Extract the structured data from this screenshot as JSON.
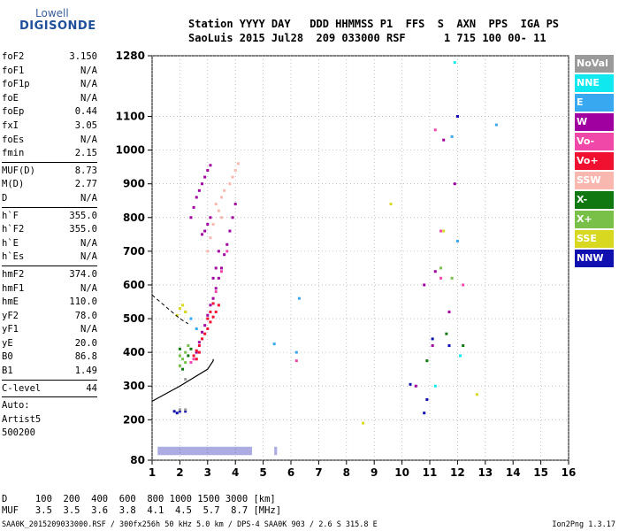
{
  "logo": {
    "line1": "Lowell",
    "line2": "DIGISONDE"
  },
  "header": {
    "labels": "Station YYYY DAY   DDD HHMMSS P1  FFS  S  AXN  PPS  IGA PS",
    "values": "SaoLuis 2015 Jul28  209 033000 RSF      1 715 100 00- 11"
  },
  "params": {
    "group1": [
      [
        "foF2",
        "3.150"
      ],
      [
        "foF1",
        "N/A"
      ],
      [
        "foF1p",
        "N/A"
      ],
      [
        "foE",
        "N/A"
      ],
      [
        "foEp",
        "0.44"
      ],
      [
        "fxI",
        "3.05"
      ],
      [
        "foEs",
        "N/A"
      ],
      [
        "fmin",
        "2.15"
      ]
    ],
    "group2": [
      [
        "MUF(D)",
        "8.73"
      ],
      [
        "M(D)",
        "2.77"
      ],
      [
        "D",
        "N/A"
      ]
    ],
    "group3": [
      [
        "h`F",
        "355.0"
      ],
      [
        "h`F2",
        "355.0"
      ],
      [
        "h`E",
        "N/A"
      ],
      [
        "h`Es",
        "N/A"
      ]
    ],
    "group4": [
      [
        "hmF2",
        "374.0"
      ],
      [
        "hmF1",
        "N/A"
      ],
      [
        "hmE",
        "110.0"
      ],
      [
        "yF2",
        "78.0"
      ],
      [
        "yF1",
        "N/A"
      ],
      [
        "yE",
        "20.0"
      ],
      [
        "B0",
        "86.8"
      ],
      [
        "B1",
        "1.49"
      ]
    ],
    "clevel": [
      "C-level",
      "44"
    ],
    "auto": [
      "Auto:",
      "Artist5",
      "500200"
    ]
  },
  "legend": [
    {
      "label": "NoVal",
      "color": "#9a9a9a"
    },
    {
      "label": "NNE",
      "color": "#10e8f0"
    },
    {
      "label": "E",
      "color": "#38a8f0"
    },
    {
      "label": "W",
      "color": "#a000a0"
    },
    {
      "label": "Vo-",
      "color": "#f048a8"
    },
    {
      "label": "Vo+",
      "color": "#f01030"
    },
    {
      "label": "SSW",
      "color": "#f8b8b0"
    },
    {
      "label": "X-",
      "color": "#107810"
    },
    {
      "label": "X+",
      "color": "#78c048"
    },
    {
      "label": "SSE",
      "color": "#d8d820"
    },
    {
      "label": "NNW",
      "color": "#1010b0"
    }
  ],
  "footer": {
    "line1": "D     100  200  400  600  800 1000 1500 3000 [km]",
    "line2": "MUF   3.5  3.5  3.6  3.8  4.1  4.5  5.7  8.7 [MHz]",
    "file": "SAA0K_2015209033000.RSF / 300fx256h 50 kHz 5.0 km / DPS-4 SAA0K 903 / 2.6 S 315.8 E",
    "version": "Ion2Png 1.3.17"
  },
  "chart_data": {
    "type": "scatter",
    "title": "",
    "xlabel": "",
    "ylabel": "",
    "xlim": [
      1,
      16
    ],
    "ylim": [
      80,
      1280
    ],
    "x_ticks": [
      1,
      2,
      3,
      4,
      5,
      6,
      7,
      8,
      9,
      10,
      11,
      12,
      13,
      14,
      15,
      16
    ],
    "y_ticks": [
      80,
      200,
      300,
      400,
      500,
      600,
      700,
      800,
      900,
      1000,
      1100,
      1280
    ],
    "grid": "dotted",
    "legend_position": "right",
    "series": [
      {
        "name": "W",
        "color": "#a000a0",
        "points": [
          [
            2.6,
            400
          ],
          [
            2.7,
            430
          ],
          [
            2.8,
            460
          ],
          [
            2.9,
            480
          ],
          [
            3.0,
            510
          ],
          [
            3.1,
            540
          ],
          [
            3.2,
            560
          ],
          [
            3.3,
            590
          ],
          [
            3.4,
            620
          ],
          [
            3.5,
            650
          ],
          [
            3.6,
            690
          ],
          [
            3.7,
            720
          ],
          [
            3.8,
            760
          ],
          [
            3.9,
            800
          ],
          [
            4.0,
            840
          ],
          [
            3.2,
            620
          ],
          [
            3.3,
            650
          ],
          [
            3.4,
            700
          ],
          [
            2.4,
            800
          ],
          [
            2.5,
            830
          ],
          [
            2.6,
            860
          ],
          [
            2.7,
            880
          ],
          [
            2.8,
            900
          ],
          [
            2.9,
            920
          ],
          [
            3.0,
            940
          ],
          [
            3.1,
            955
          ],
          [
            2.8,
            750
          ],
          [
            3.0,
            780
          ],
          [
            3.1,
            800
          ],
          [
            2.9,
            760
          ],
          [
            12.0,
            1100
          ],
          [
            11.5,
            1030
          ],
          [
            11.9,
            900
          ],
          [
            11.2,
            640
          ],
          [
            10.8,
            600
          ],
          [
            10.5,
            300
          ],
          [
            11.7,
            520
          ],
          [
            11.1,
            420
          ]
        ]
      },
      {
        "name": "Vo+",
        "color": "#f01030",
        "points": [
          [
            2.5,
            390
          ],
          [
            2.6,
            405
          ],
          [
            2.7,
            420
          ],
          [
            2.8,
            440
          ],
          [
            2.9,
            455
          ],
          [
            3.0,
            470
          ],
          [
            3.1,
            490
          ],
          [
            3.2,
            505
          ],
          [
            3.3,
            520
          ],
          [
            3.4,
            540
          ],
          [
            2.6,
            380
          ],
          [
            2.7,
            400
          ],
          [
            3.0,
            500
          ],
          [
            3.1,
            520
          ],
          [
            3.2,
            545
          ]
        ]
      },
      {
        "name": "Vo-",
        "color": "#f048a8",
        "points": [
          [
            2.4,
            370
          ],
          [
            2.5,
            380
          ],
          [
            3.3,
            580
          ],
          [
            3.5,
            640
          ],
          [
            3.7,
            700
          ],
          [
            11.2,
            1060
          ],
          [
            11.4,
            760
          ],
          [
            11.4,
            620
          ],
          [
            12.2,
            600
          ],
          [
            6.2,
            375
          ]
        ]
      },
      {
        "name": "SSW",
        "color": "#f8b8b0",
        "points": [
          [
            3.0,
            700
          ],
          [
            3.1,
            740
          ],
          [
            3.2,
            780
          ],
          [
            3.4,
            820
          ],
          [
            3.5,
            860
          ],
          [
            3.6,
            880
          ],
          [
            3.8,
            900
          ],
          [
            3.9,
            920
          ],
          [
            4.0,
            940
          ],
          [
            4.1,
            960
          ],
          [
            3.3,
            840
          ],
          [
            3.5,
            800
          ]
        ]
      },
      {
        "name": "X+",
        "color": "#78c048",
        "points": [
          [
            2.0,
            360
          ],
          [
            2.1,
            380
          ],
          [
            2.2,
            400
          ],
          [
            2.3,
            420
          ],
          [
            2.0,
            390
          ],
          [
            2.2,
            370
          ],
          [
            11.4,
            650
          ],
          [
            11.8,
            620
          ],
          [
            2.2,
            520
          ]
        ]
      },
      {
        "name": "X-",
        "color": "#107810",
        "points": [
          [
            2.1,
            350
          ],
          [
            2.3,
            390
          ],
          [
            2.4,
            410
          ],
          [
            2.0,
            410
          ],
          [
            11.6,
            455
          ],
          [
            12.2,
            420
          ],
          [
            10.9,
            375
          ]
        ]
      },
      {
        "name": "SSE",
        "color": "#d8d820",
        "points": [
          [
            2.0,
            530
          ],
          [
            2.1,
            540
          ],
          [
            2.2,
            520
          ],
          [
            1.9,
            510
          ],
          [
            8.6,
            190
          ],
          [
            12.7,
            275
          ],
          [
            9.6,
            840
          ],
          [
            11.5,
            760
          ]
        ]
      },
      {
        "name": "E",
        "color": "#38a8f0",
        "points": [
          [
            2.4,
            500
          ],
          [
            2.6,
            470
          ],
          [
            5.4,
            425
          ],
          [
            6.2,
            400
          ],
          [
            6.3,
            560
          ],
          [
            13.4,
            1075
          ],
          [
            12.0,
            730
          ],
          [
            11.8,
            1040
          ]
        ]
      },
      {
        "name": "NNE",
        "color": "#10e8f0",
        "points": [
          [
            11.9,
            1260
          ],
          [
            12.1,
            390
          ],
          [
            11.2,
            300
          ]
        ]
      },
      {
        "name": "NNW",
        "color": "#1010b0",
        "points": [
          [
            1.8,
            225
          ],
          [
            2.0,
            225
          ],
          [
            2.2,
            225
          ],
          [
            1.9,
            220
          ],
          [
            11.1,
            440
          ],
          [
            10.3,
            305
          ],
          [
            10.8,
            220
          ],
          [
            10.9,
            260
          ],
          [
            11.7,
            420
          ],
          [
            12.0,
            1100
          ]
        ]
      },
      {
        "name": "NoVal",
        "color": "#9a9a9a",
        "points": [
          [
            2.2,
            320
          ],
          [
            2.0,
            230
          ],
          [
            2.2,
            230
          ]
        ]
      }
    ],
    "ground_band": {
      "name": "NNW",
      "y": [
        95,
        120
      ],
      "x_ranges": [
        [
          1.2,
          4.6
        ],
        [
          5.4,
          5.5
        ]
      ]
    },
    "profile_curve": [
      [
        1.0,
        255
      ],
      [
        2.0,
        300
      ],
      [
        3.0,
        350
      ],
      [
        3.2,
        375
      ],
      [
        3.2,
        380
      ]
    ],
    "profile_dashed": [
      [
        1.0,
        570
      ],
      [
        2.0,
        500
      ],
      [
        2.3,
        485
      ]
    ]
  }
}
